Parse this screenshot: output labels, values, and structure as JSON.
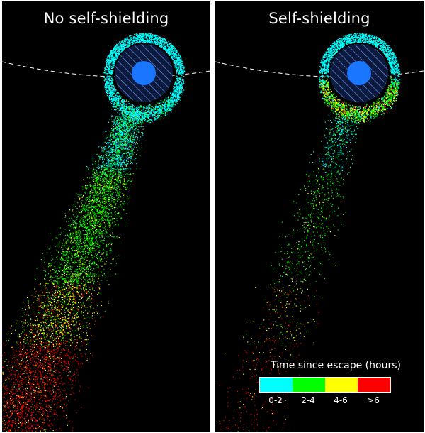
{
  "panels": [
    {
      "title": "No self-shielding",
      "key": "left"
    },
    {
      "title": "Self-shielding",
      "key": "right"
    }
  ],
  "legend": {
    "title": "Time since escape (hours)",
    "bins": [
      {
        "label": "0-2",
        "color": "#00ffff"
      },
      {
        "label": "2-4",
        "color": "#00ff00"
      },
      {
        "label": "4-6",
        "color": "#ffff00"
      },
      {
        "label": ">6",
        "color": "#ff0000"
      }
    ]
  },
  "colors": {
    "planet": "#1a75ff",
    "hatched_disk": "#0d1a3d",
    "hatch": "#6aa0ff",
    "orbit": "#ffffff"
  }
}
